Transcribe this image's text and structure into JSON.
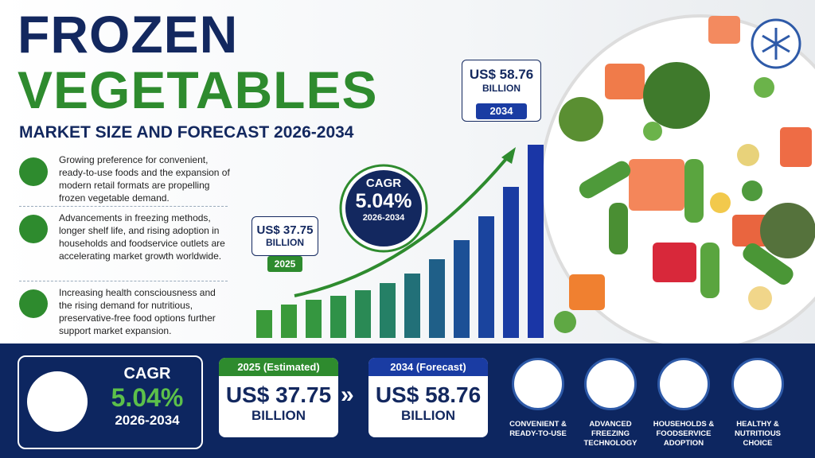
{
  "header": {
    "title_line1": "FROZEN",
    "title_line2": "VEGETABLES",
    "subtitle": "MARKET SIZE AND FORECAST 2026-2034"
  },
  "drivers": [
    {
      "text": "Growing preference for convenient, ready-to-use foods and the expansion of modern retail formats are propelling frozen vegetable demand."
    },
    {
      "text": "Advancements in freezing methods, longer shelf life, and rising adoption in households and foodservice outlets are accelerating market growth worldwide."
    },
    {
      "text": "Increasing health consciousness and the rising demand for nutritious, preservative-free food options further support market expansion."
    }
  ],
  "chart": {
    "start": {
      "value": "US$ 37.75",
      "unit": "BILLION",
      "year": "2025"
    },
    "end": {
      "value": "US$ 58.76",
      "unit": "BILLION",
      "year": "2034"
    },
    "cagr": {
      "label": "CAGR",
      "value": "5.04%",
      "period": "2026-2034"
    }
  },
  "footer": {
    "cagr": {
      "label": "CAGR",
      "value": "5.04%",
      "period": "2026-2034"
    },
    "estimated": {
      "heading": "2025 (Estimated)",
      "value": "US$ 37.75",
      "unit": "BILLION"
    },
    "forecast": {
      "heading": "2034 (Forecast)",
      "value": "US$ 58.76",
      "unit": "BILLION"
    },
    "features": [
      {
        "label": "CONVENIENT & READY-TO-USE"
      },
      {
        "label": "ADVANCED FREEZING TECHNOLOGY"
      },
      {
        "label": "HOUSEHOLDS & FOODSERVICE ADOPTION"
      },
      {
        "label": "HEALTHY & NUTRITIOUS CHOICE"
      }
    ]
  }
}
